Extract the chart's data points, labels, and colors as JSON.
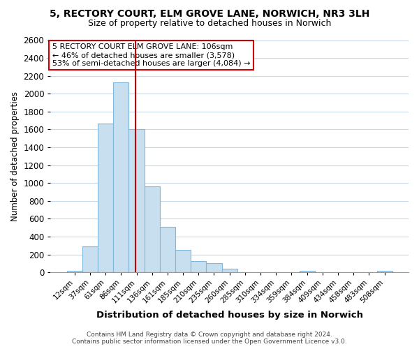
{
  "title": "5, RECTORY COURT, ELM GROVE LANE, NORWICH, NR3 3LH",
  "subtitle": "Size of property relative to detached houses in Norwich",
  "xlabel": "Distribution of detached houses by size in Norwich",
  "ylabel": "Number of detached properties",
  "categories": [
    "12sqm",
    "37sqm",
    "61sqm",
    "86sqm",
    "111sqm",
    "136sqm",
    "161sqm",
    "185sqm",
    "210sqm",
    "235sqm",
    "260sqm",
    "285sqm",
    "310sqm",
    "334sqm",
    "359sqm",
    "384sqm",
    "409sqm",
    "434sqm",
    "458sqm",
    "483sqm",
    "508sqm"
  ],
  "values": [
    15,
    295,
    1665,
    2130,
    1600,
    965,
    510,
    250,
    130,
    100,
    40,
    0,
    0,
    0,
    0,
    15,
    0,
    0,
    0,
    0,
    15
  ],
  "bar_color": "#c8dff0",
  "bar_edge_color": "#7fb8d8",
  "vline_color": "#cc0000",
  "vline_x": 3.93,
  "annotation_text_line1": "5 RECTORY COURT ELM GROVE LANE: 106sqm",
  "annotation_text_line2": "← 46% of detached houses are smaller (3,578)",
  "annotation_text_line3": "53% of semi-detached houses are larger (4,084) →",
  "annotation_box_edge_color": "#cc0000",
  "ylim": [
    0,
    2600
  ],
  "yticks": [
    0,
    200,
    400,
    600,
    800,
    1000,
    1200,
    1400,
    1600,
    1800,
    2000,
    2200,
    2400,
    2600
  ],
  "footer_line1": "Contains HM Land Registry data © Crown copyright and database right 2024.",
  "footer_line2": "Contains public sector information licensed under the Open Government Licence v3.0.",
  "background_color": "#ffffff",
  "grid_color": "#c8d8e8",
  "title_fontsize": 10,
  "subtitle_fontsize": 9
}
